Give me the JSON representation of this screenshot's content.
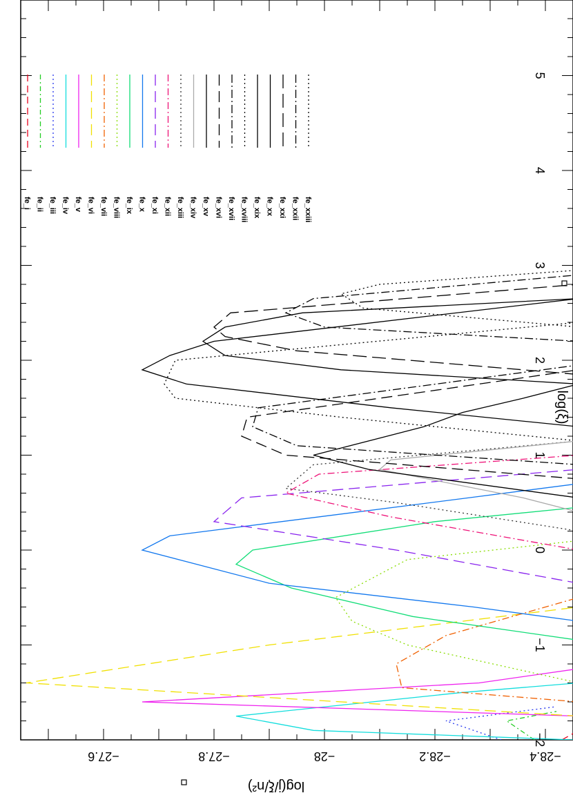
{
  "chart_data": {
    "type": "line",
    "title": "",
    "xlabel": "log(ξ)",
    "ylabel": "log(j/ξ/n²)",
    "xlim": [
      -2,
      6
    ],
    "ylim": [
      -28.45,
      -27.45
    ],
    "x_ticks": [
      -2,
      -1,
      0,
      1,
      2,
      3,
      4,
      5
    ],
    "x_tick_labels": [
      "−2",
      "−1",
      "0",
      "1",
      "2",
      "3",
      "4",
      "5"
    ],
    "y_ticks": [
      -28.4,
      -28.2,
      -28,
      -27.8,
      -27.6
    ],
    "y_tick_labels": [
      "−28.4",
      "−28.2",
      "−28",
      "−27.8",
      "−27.6"
    ],
    "grid": false,
    "legend_position": "right",
    "series": [
      {
        "name": "fe_i",
        "color": "#e8001c",
        "dash": "10,6",
        "x": [
          -2.0,
          -1.9
        ],
        "y": [
          -28.43,
          -28.46
        ]
      },
      {
        "name": "fe_ii",
        "color": "#22cc22",
        "dash": "7,4,2,4",
        "x": [
          -2.0,
          -1.8,
          -1.7
        ],
        "y": [
          -28.38,
          -28.33,
          -28.42
        ]
      },
      {
        "name": "fe_iii",
        "color": "#2233ee",
        "dash": "2,4",
        "x": [
          -2.0,
          -1.8,
          -1.65
        ],
        "y": [
          -28.32,
          -28.22,
          -28.42
        ]
      },
      {
        "name": "fe_iv",
        "color": "#11dddd",
        "dash": "",
        "x": [
          -2.0,
          -1.9,
          -1.75,
          -1.5,
          -1.4
        ],
        "y": [
          -28.45,
          -27.98,
          -27.84,
          -28.25,
          -28.46
        ]
      },
      {
        "name": "fe_v",
        "color": "#ee22ee",
        "dash": "",
        "x": [
          -1.75,
          -1.6,
          -1.4,
          -1.25
        ],
        "y": [
          -28.46,
          -27.67,
          -28.28,
          -28.46
        ]
      },
      {
        "name": "fe_vi",
        "color": "#f0e000",
        "dash": "16,8",
        "x": [
          -1.75,
          -1.4,
          -1.0,
          -0.6
        ],
        "y": [
          -28.46,
          -27.46,
          -27.9,
          -28.46
        ]
      },
      {
        "name": "fe_vii",
        "color": "#f06000",
        "dash": "10,4,2,4",
        "x": [
          -1.6,
          -1.45,
          -1.2,
          -0.9,
          -0.5
        ],
        "y": [
          -28.46,
          -28.14,
          -28.13,
          -28.22,
          -28.46
        ]
      },
      {
        "name": "fe_viii",
        "color": "#88dd00",
        "dash": "2,4",
        "x": [
          -1.4,
          -1.0,
          -0.75,
          -0.5,
          -0.1,
          0.1
        ],
        "y": [
          -28.46,
          -28.15,
          -28.05,
          -28.02,
          -28.15,
          -28.46
        ]
      },
      {
        "name": "fe_ix",
        "color": "#11dd77",
        "dash": "",
        "x": [
          -0.95,
          -0.7,
          -0.4,
          -0.15,
          0.0,
          0.3,
          0.45
        ],
        "y": [
          -28.46,
          -28.16,
          -27.94,
          -27.84,
          -27.87,
          -28.2,
          -28.46
        ]
      },
      {
        "name": "fe_x",
        "color": "#1177ee",
        "dash": "",
        "x": [
          -0.75,
          -0.6,
          -0.35,
          0.0,
          0.15,
          0.55,
          0.7
        ],
        "y": [
          -28.46,
          -28.27,
          -27.9,
          -27.67,
          -27.72,
          -28.26,
          -28.46
        ]
      },
      {
        "name": "fe_xi",
        "color": "#8822ee",
        "dash": "16,8",
        "x": [
          -0.35,
          0.0,
          0.3,
          0.55,
          0.85
        ],
        "y": [
          -28.46,
          -28.13,
          -27.8,
          -27.85,
          -28.46
        ]
      },
      {
        "name": "fe_xii",
        "color": "#ee1177",
        "dash": "10,4,2,4",
        "x": [
          0.0,
          0.35,
          0.6,
          0.8,
          1.0
        ],
        "y": [
          -28.46,
          -28.12,
          -27.93,
          -27.99,
          -28.46
        ]
      },
      {
        "name": "fe_xiii",
        "color": "#333333",
        "dash": "2,4",
        "x": [
          0.2,
          0.5,
          0.65,
          0.9,
          1.15
        ],
        "y": [
          -28.46,
          -28.13,
          -27.93,
          -27.98,
          -28.46
        ]
      },
      {
        "name": "fe_xiv",
        "color": "#aaaaaa",
        "dash": "",
        "x": [
          0.4,
          0.55,
          0.85,
          0.95,
          1.15
        ],
        "y": [
          -28.46,
          -28.36,
          -28.1,
          -28.12,
          -28.46
        ]
      },
      {
        "name": "fe_xv",
        "color": "#000000",
        "dash": "",
        "x": [
          0.55,
          0.85,
          1.0,
          1.3,
          1.45,
          1.6,
          1.75
        ],
        "y": [
          -28.46,
          -28.08,
          -27.98,
          -28.18,
          -28.25,
          -28.36,
          -28.46
        ]
      },
      {
        "name": "fe_xvi",
        "color": "#000000",
        "dash": "16,8",
        "x": [
          0.75,
          1.0,
          1.2,
          1.4,
          1.9
        ],
        "y": [
          -28.46,
          -27.93,
          -27.85,
          -27.86,
          -28.46
        ]
      },
      {
        "name": "fe_xvii",
        "color": "#000000",
        "dash": "12,4,2,4",
        "x": [
          0.9,
          1.1,
          1.3,
          1.5,
          1.95
        ],
        "y": [
          -28.46,
          -27.95,
          -27.87,
          -27.88,
          -28.46
        ]
      },
      {
        "name": "fe_xviii",
        "color": "#000000",
        "dash": "2,4",
        "x": [
          1.15,
          1.4,
          1.6,
          1.75,
          2.0,
          2.4
        ],
        "y": [
          -28.46,
          -28.03,
          -27.73,
          -27.71,
          -27.73,
          -28.46
        ]
      },
      {
        "name": "fe_xix",
        "color": "#000000",
        "dash": "",
        "x": [
          1.3,
          1.5,
          1.75,
          1.9,
          2.05,
          2.2,
          2.65
        ],
        "y": [
          -28.46,
          -28.12,
          -27.75,
          -27.67,
          -27.72,
          -27.8,
          -28.46
        ]
      },
      {
        "name": "fe_xx",
        "color": "#000000",
        "dash": "",
        "x": [
          1.75,
          1.9,
          2.05,
          2.2,
          2.35,
          2.5,
          2.65
        ],
        "y": [
          -28.46,
          -28.03,
          -27.82,
          -27.78,
          -27.82,
          -27.96,
          -28.46
        ]
      },
      {
        "name": "fe_xxi",
        "color": "#000000",
        "dash": "20,8",
        "x": [
          1.85,
          2.1,
          2.25,
          2.35,
          2.5,
          2.8
        ],
        "y": [
          -28.46,
          -27.95,
          -27.82,
          -27.8,
          -27.83,
          -28.46
        ]
      },
      {
        "name": "fe_xxii",
        "color": "#000000",
        "dash": "12,4,2,4",
        "x": [
          2.2,
          2.35,
          2.5,
          2.65,
          2.9
        ],
        "y": [
          -28.46,
          -28.0,
          -27.93,
          -27.98,
          -28.46
        ]
      },
      {
        "name": "fe_xxiii",
        "color": "#000000",
        "dash": "2,4",
        "x": [
          2.35,
          2.55,
          2.7,
          2.8,
          2.95
        ],
        "y": [
          -28.46,
          -28.07,
          -28.03,
          -28.1,
          -28.46
        ]
      }
    ]
  }
}
